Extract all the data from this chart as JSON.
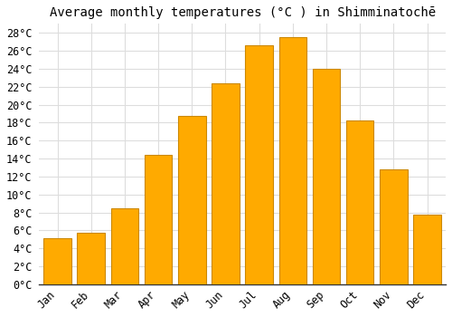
{
  "title": "Average monthly temperatures (°C ) in Shimminatochē",
  "months": [
    "Jan",
    "Feb",
    "Mar",
    "Apr",
    "May",
    "Jun",
    "Jul",
    "Aug",
    "Sep",
    "Oct",
    "Nov",
    "Dec"
  ],
  "temperatures": [
    5.1,
    5.7,
    8.5,
    14.4,
    18.7,
    22.4,
    26.6,
    27.5,
    24.0,
    18.2,
    12.8,
    7.8
  ],
  "bar_color": "#FFAA00",
  "bar_edge_color": "#CC8800",
  "ylim": [
    0,
    29
  ],
  "yticks": [
    0,
    2,
    4,
    6,
    8,
    10,
    12,
    14,
    16,
    18,
    20,
    22,
    24,
    26,
    28
  ],
  "background_color": "#ffffff",
  "plot_bg_color": "#ffffff",
  "grid_color": "#dddddd",
  "title_fontsize": 10,
  "tick_fontsize": 8.5,
  "bar_width": 0.82
}
